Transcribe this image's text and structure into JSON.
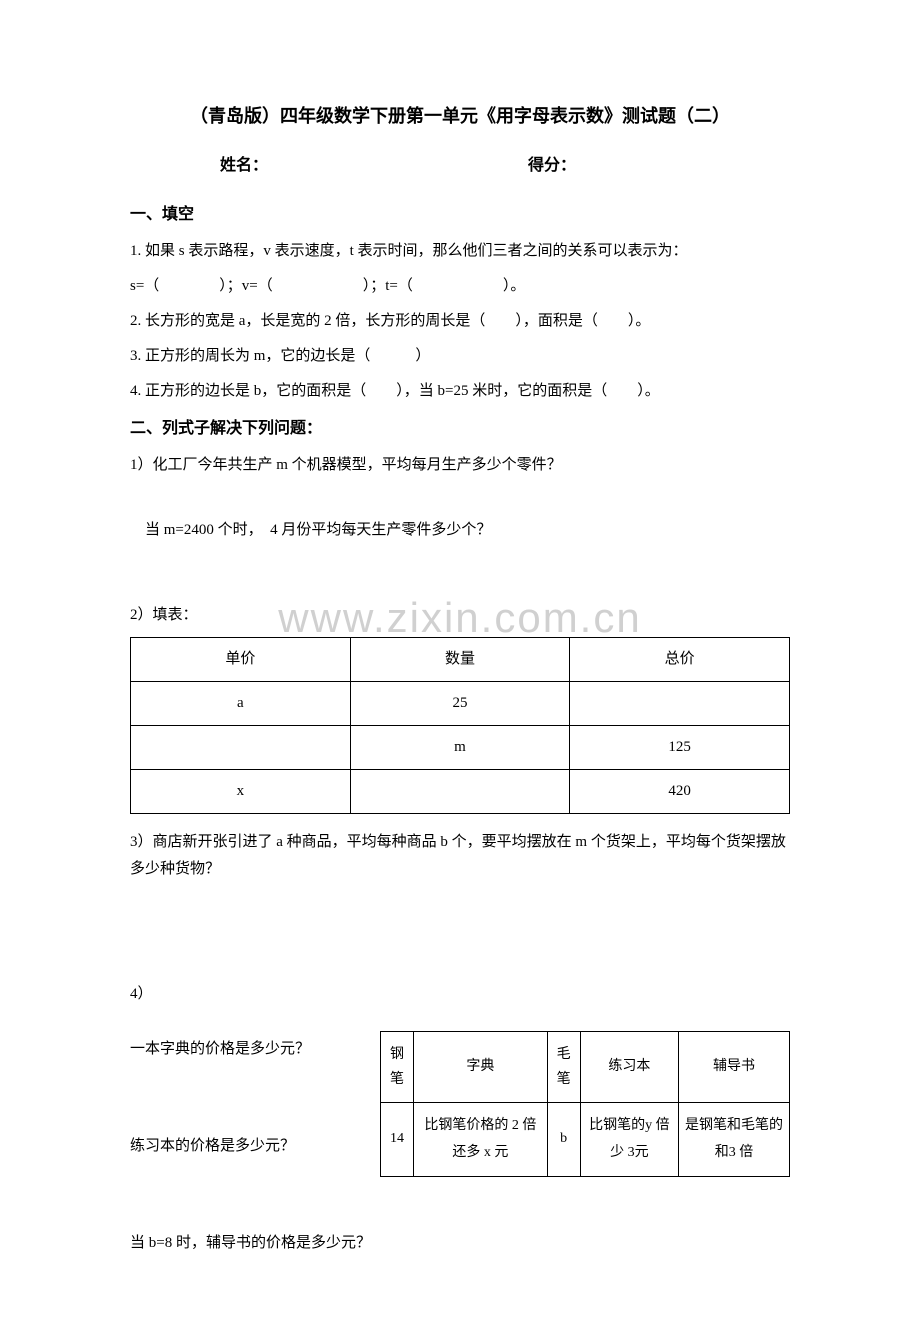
{
  "title": "（青岛版）四年级数学下册第一单元《用字母表示数》测试题（二）",
  "name_label": "姓名：",
  "score_label": "得分：",
  "section1": {
    "header": "一、填空",
    "q1": "1. 如果 s 表示路程，v 表示速度，t 表示时间，那么他们三者之间的关系可以表示为：",
    "q1b": "s=（　　　　）；v=（　　　　　　）；t=（　　　　　　）。",
    "q2": "2. 长方形的宽是 a，长是宽的 2 倍，长方形的周长是（　　），面积是（　　）。",
    "q3": "3. 正方形的周长为 m，它的边长是（　　　）",
    "q4": "4. 正方形的边长是 b，它的面积是（　　），当 b=25 米时，它的面积是（　　）。"
  },
  "section2": {
    "header": "二、列式子解决下列问题：",
    "q1a": "1）化工厂今年共生产 m 个机器模型，平均每月生产多少个零件？",
    "q1b": "当 m=2400 个时，　4 月份平均每天生产零件多少个？",
    "q2": "2）填表：",
    "table1": {
      "headers": [
        "单价",
        "数量",
        "总价"
      ],
      "rows": [
        [
          "a",
          "25",
          ""
        ],
        [
          "",
          "m",
          "125"
        ],
        [
          "x",
          "",
          "420"
        ]
      ]
    },
    "q3": "3）商店新开张引进了 a 种商品，平均每种商品 b 个，要平均摆放在 m 个货架上，平均每个货架摆放多少种货物？",
    "q4": "4）",
    "q4a": "一本字典的价格是多少元？",
    "q4b": "练习本的价格是多少元？",
    "table2": {
      "headers": [
        "钢笔",
        "字典",
        "毛笔",
        "练习本",
        "辅导书"
      ],
      "row": [
        "14",
        "比钢笔价格的 2 倍还多 x 元",
        "b",
        "比钢笔的y 倍少 3元",
        "是钢笔和毛笔的和3 倍"
      ]
    },
    "q4c": "当 b=8 时，辅导书的价格是多少元？"
  },
  "watermark": "www.zixin.com.cn"
}
